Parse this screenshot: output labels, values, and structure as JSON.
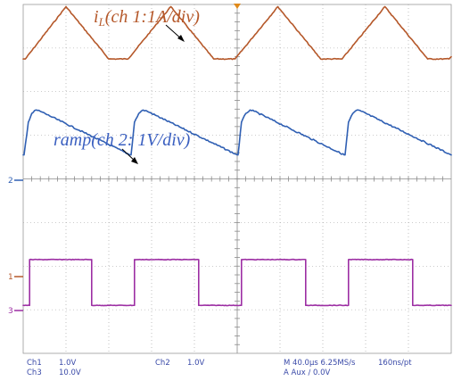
{
  "colors": {
    "ch1": "#b5582a",
    "ch2": "#2f5fb3",
    "ch3": "#9c2ea3",
    "grid": "#9a9a9a",
    "annotation": "#3a5fc0",
    "trigger": "#e08a1a"
  },
  "chart_data": {
    "type": "line",
    "xlim": [
      0,
      10
    ],
    "ylim": [
      0,
      8
    ],
    "grid": true,
    "series": [
      {
        "key": "ch1",
        "x": [
          0,
          0.05,
          1.0,
          2.0,
          2.45,
          3.45,
          4.45,
          4.95,
          5.95,
          6.95,
          7.45,
          8.45,
          9.45,
          9.95,
          10
        ],
        "y": [
          6.75,
          6.75,
          7.95,
          6.75,
          6.75,
          7.95,
          6.75,
          6.75,
          7.95,
          6.75,
          6.75,
          7.95,
          6.75,
          6.75,
          6.8
        ]
      },
      {
        "key": "ch2",
        "x": [
          0,
          0.02,
          0.12,
          0.2,
          0.3,
          0.4,
          2.5,
          2.52,
          2.6,
          2.7,
          2.8,
          2.9,
          5.0,
          5.02,
          5.1,
          5.2,
          5.3,
          5.4,
          7.5,
          7.52,
          7.6,
          7.7,
          7.8,
          7.9,
          10.0
        ],
        "y": [
          4.55,
          4.55,
          5.3,
          5.5,
          5.58,
          5.55,
          4.55,
          4.55,
          5.3,
          5.5,
          5.58,
          5.55,
          4.55,
          4.55,
          5.3,
          5.5,
          5.58,
          5.55,
          4.55,
          4.55,
          5.3,
          5.5,
          5.58,
          5.55,
          4.55
        ]
      },
      {
        "key": "ch3",
        "x": [
          0,
          0.15,
          0.15,
          1.6,
          1.6,
          2.6,
          2.6,
          4.1,
          4.1,
          5.1,
          5.1,
          6.6,
          6.6,
          7.6,
          7.6,
          9.1,
          9.1,
          10.0
        ],
        "y": [
          1.1,
          1.1,
          2.15,
          2.15,
          1.1,
          1.1,
          2.15,
          2.15,
          1.1,
          1.1,
          2.15,
          2.15,
          1.1,
          1.1,
          2.15,
          2.15,
          1.1,
          1.1
        ]
      }
    ]
  },
  "annotations": {
    "il_main": "i",
    "il_sub": "L",
    "il_rest": "(ch 1:1A/div)",
    "ramp": "ramp(ch 2: 1V/div)"
  },
  "markers": {
    "ch1": "1",
    "ch2": "2",
    "ch3": "3"
  },
  "readout": {
    "ch1_label": "Ch1",
    "ch1_value": "1.0V",
    "ch2_label": "Ch2",
    "ch2_value": "1.0V",
    "ch3_label": "Ch3",
    "ch3_value": "10.0V",
    "timebase": "M 40.0µs 6.25MS/s",
    "resolution": "160ns/pt",
    "trigger": "A  Aux  ∕  0.0V"
  }
}
